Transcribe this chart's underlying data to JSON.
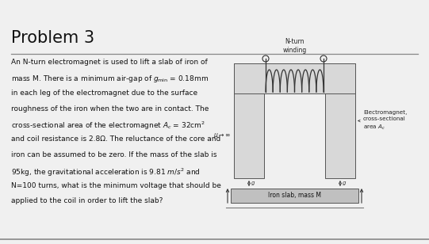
{
  "title": "Problem 3",
  "body_lines": [
    "An N-turn electromagnet is used to lift a slab of iron of",
    "mass M. There is a minimum air-gap of $g_{\\mathrm{min}}$ = 0.18mm",
    "in each leg of the electromagnet due to the surface",
    "roughness of the iron when the two are in contact. The",
    "cross-sectional area of the electromagnet $A_c$ = 32cm$^2$",
    "and coil resistance is 2.8Ω. The reluctance of the core and",
    "iron can be assumed to be zero. If the mass of the slab is",
    "95kg, the gravitational acceleration is 9.81 $m/s^2$ and",
    "N=100 turns, what is the minimum voltage that should be",
    "applied to the coil in order to lift the slab?"
  ],
  "bg_color": "#f0f0f0",
  "title_color": "#111111",
  "text_color": "#111111",
  "divider_color": "#888888",
  "label_winding": "N-turn\nwinding",
  "label_electromagnet": "Electromagnet,\ncross-sectional\narea $A_c$",
  "label_iron": "Iron slab, mass M",
  "label_mu": "$\\mu\\rightarrow\\infty$",
  "core_fill": "#d8d8d8",
  "core_edge": "#555555",
  "slab_fill": "#c0c0c0",
  "slab_edge": "#555555"
}
